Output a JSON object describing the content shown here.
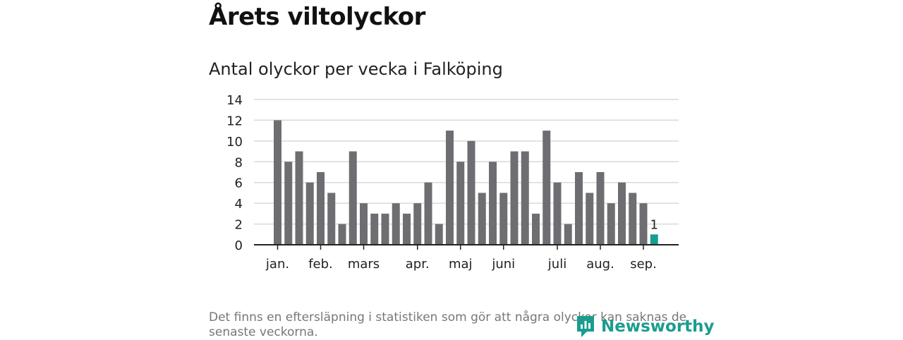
{
  "title": "Årets viltolyckor",
  "subtitle": "Antal olyckor per vecka i Falköping",
  "footnote": "Det finns en eftersläpning i statistiken som gör att några olyckor kan saknas de senaste veckorna.",
  "brand": "Newsworthy",
  "colors": {
    "bar": "#6e6d72",
    "highlight": "#1a9d8f",
    "grid": "#d9d9d9",
    "axis": "#222222"
  },
  "chart_data": {
    "type": "bar",
    "values": [
      12,
      8,
      9,
      6,
      7,
      5,
      2,
      9,
      4,
      3,
      3,
      4,
      3,
      4,
      6,
      2,
      11,
      8,
      10,
      5,
      8,
      5,
      9,
      9,
      3,
      11,
      6,
      2,
      7,
      5,
      7,
      4,
      6,
      5,
      4,
      1
    ],
    "highlight_index": 35,
    "highlight_label": "1",
    "ylim": [
      0,
      14
    ],
    "yticks": [
      0,
      2,
      4,
      6,
      8,
      10,
      12,
      14
    ],
    "month_labels": [
      {
        "label": "jan.",
        "bar": 0
      },
      {
        "label": "feb.",
        "bar": 4
      },
      {
        "label": "mars",
        "bar": 8
      },
      {
        "label": "apr.",
        "bar": 13
      },
      {
        "label": "maj",
        "bar": 17
      },
      {
        "label": "juni",
        "bar": 21
      },
      {
        "label": "juli",
        "bar": 26
      },
      {
        "label": "aug.",
        "bar": 30
      },
      {
        "label": "sep.",
        "bar": 34
      }
    ],
    "grid": true
  }
}
